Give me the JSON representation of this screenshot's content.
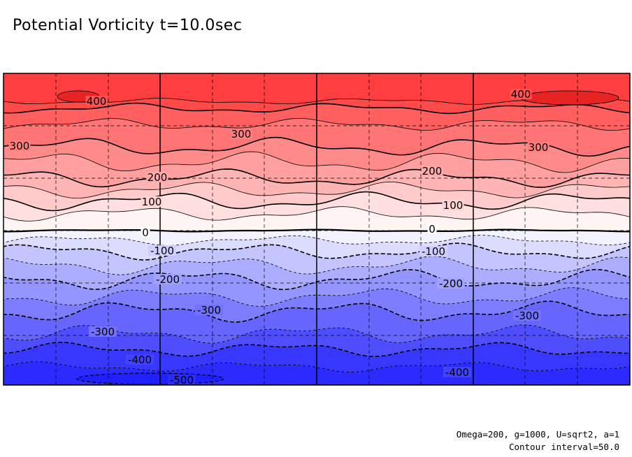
{
  "chart_data": {
    "type": "contour",
    "title": "Potential Vorticity t=10.0sec",
    "variable": "Potential Vorticity",
    "time": "t=10.0sec",
    "xlabel": "",
    "ylabel": "",
    "contour_interval": 50.0,
    "levels": [
      -500,
      -450,
      -400,
      -350,
      -300,
      -250,
      -200,
      -150,
      -100,
      -50,
      0,
      50,
      100,
      150,
      200,
      250,
      300,
      350,
      400,
      450
    ],
    "labeled_contours": [
      {
        "text": "400",
        "value": 400
      },
      {
        "text": "400",
        "value": 400
      },
      {
        "text": "300",
        "value": 300
      },
      {
        "text": "300",
        "value": 300
      },
      {
        "text": "300",
        "value": 300
      },
      {
        "text": "200",
        "value": 200
      },
      {
        "text": "200",
        "value": 200
      },
      {
        "text": "100",
        "value": 100
      },
      {
        "text": "100",
        "value": 100
      },
      {
        "text": "0",
        "value": 0
      },
      {
        "text": "0",
        "value": 0
      },
      {
        "text": "-100",
        "value": -100
      },
      {
        "text": "-100",
        "value": -100
      },
      {
        "text": "-200",
        "value": -200
      },
      {
        "text": "-200",
        "value": -200
      },
      {
        "text": "-300",
        "value": -300
      },
      {
        "text": "-300",
        "value": -300
      },
      {
        "text": "-300",
        "value": -300
      },
      {
        "text": "-400",
        "value": -400
      },
      {
        "text": "-400",
        "value": -400
      },
      {
        "text": "-500",
        "value": -500
      }
    ],
    "grid": true,
    "colormap": {
      "negative": "#2b2bff",
      "zero": "#ffffff",
      "positive": "#ff3f3f"
    },
    "params": "Omega=200, g=1000, U=sqrt2, a=1",
    "interval_label": "Contour interval=50.0"
  }
}
